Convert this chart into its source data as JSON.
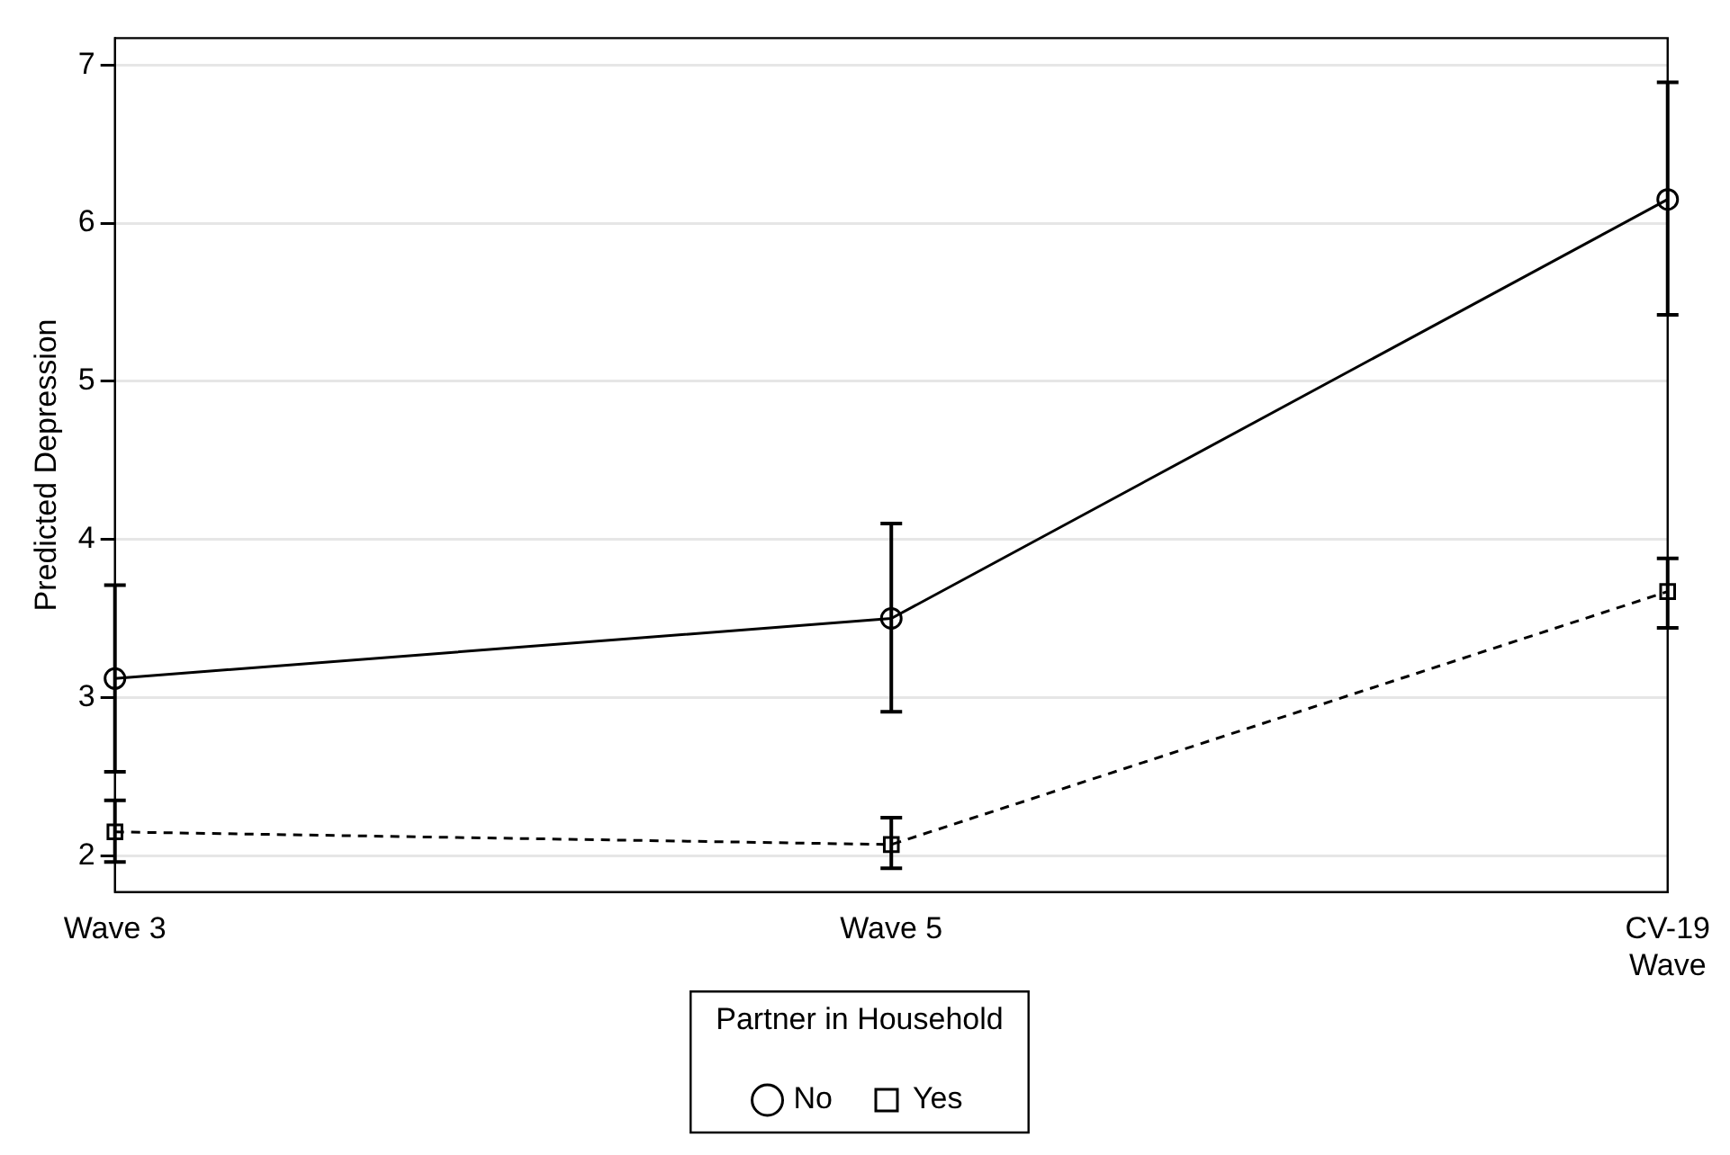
{
  "chart_data": {
    "type": "line",
    "ylabel": "Predicted Depression",
    "legend_title": "Partner in Household",
    "categories": [
      "Wave 3",
      "Wave 5",
      "CV-19\nWave"
    ],
    "series": [
      {
        "name": "No",
        "color": "#000000",
        "marker": "circle",
        "line_style": "solid",
        "values": [
          3.12,
          3.5,
          6.15
        ],
        "errors": [
          [
            2.53,
            3.71
          ],
          [
            2.91,
            4.1
          ],
          [
            5.42,
            6.89
          ]
        ]
      },
      {
        "name": "Yes",
        "color": "#000000",
        "marker": "square",
        "line_style": "dashed",
        "values": [
          2.15,
          2.07,
          3.67
        ],
        "errors": [
          [
            1.96,
            2.35
          ],
          [
            1.92,
            2.24
          ],
          [
            3.44,
            3.88
          ]
        ]
      }
    ],
    "ylim": [
      1.77,
      7.17
    ],
    "yticks": [
      2,
      3,
      4,
      5,
      6,
      7
    ],
    "grid": "y",
    "legend": "bottom"
  }
}
